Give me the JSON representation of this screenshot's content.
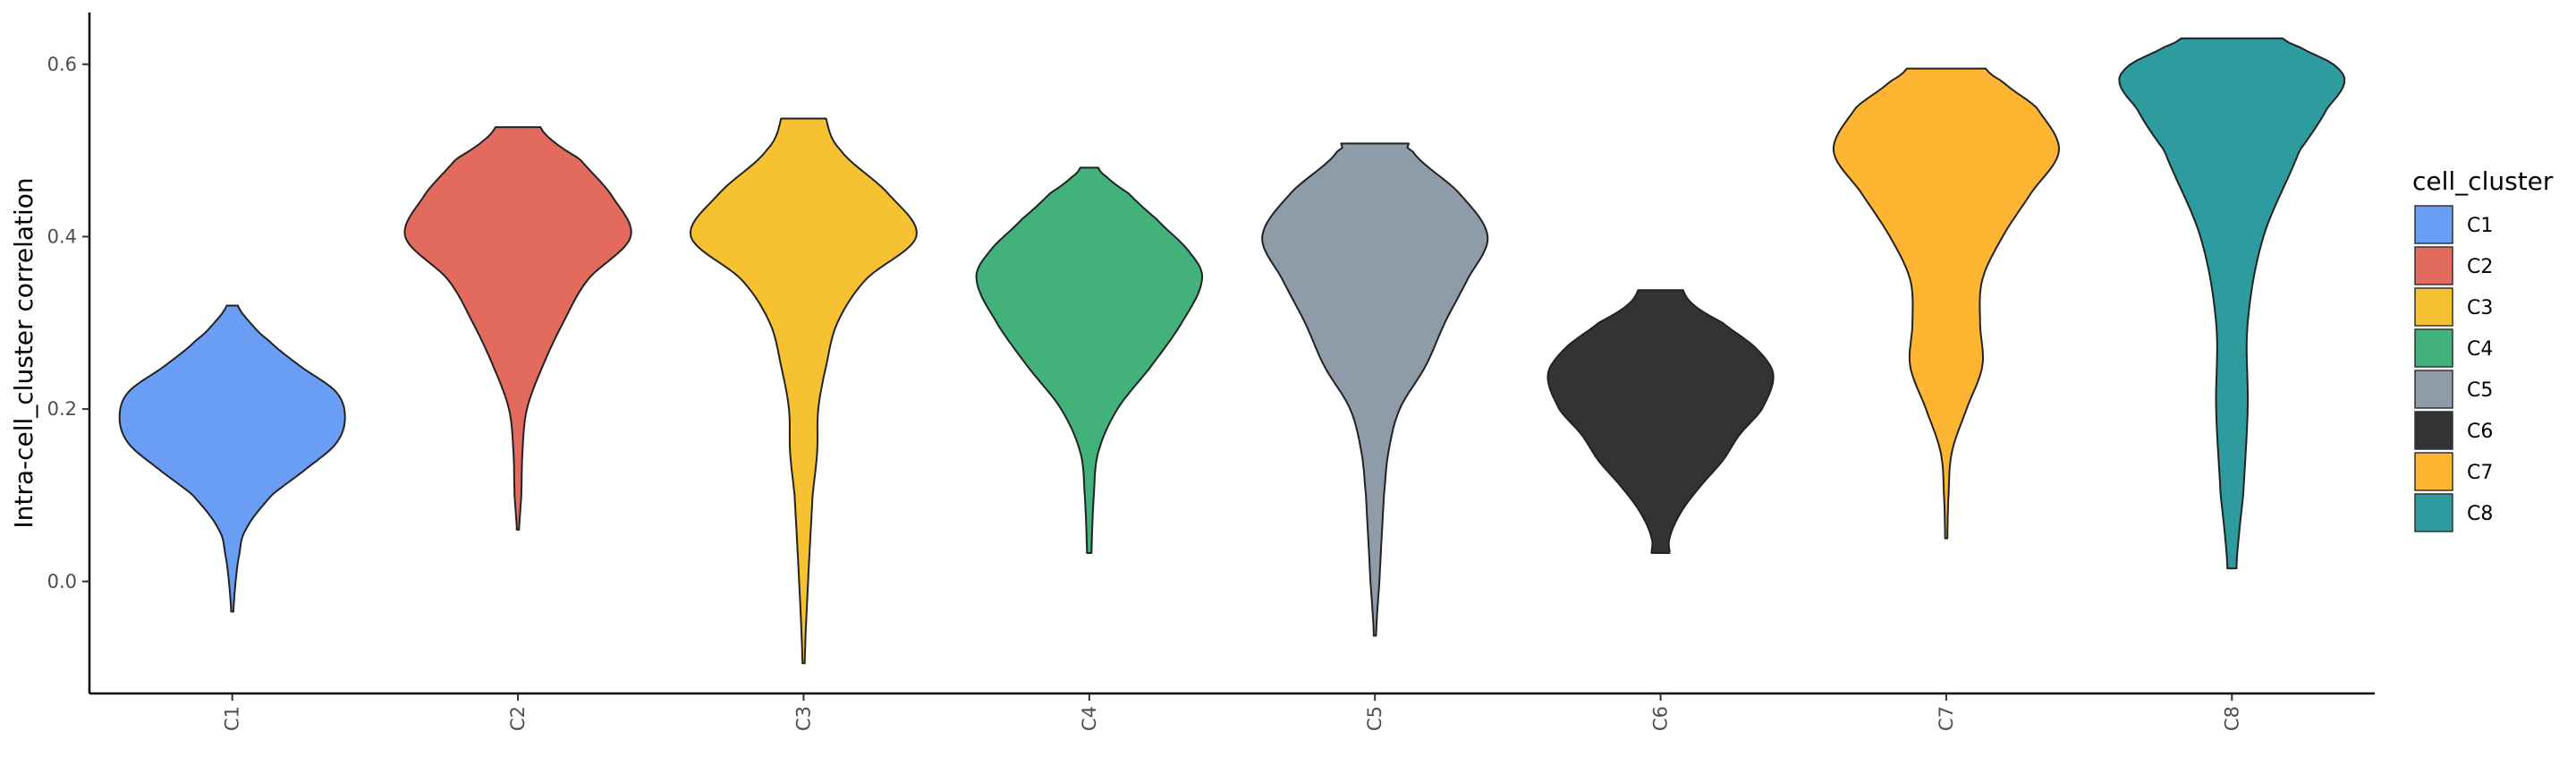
{
  "chart_data": {
    "type": "violin",
    "title": "",
    "xlabel": "",
    "ylabel": "Intra-cell_cluster correlation",
    "ylim": [
      -0.13,
      0.66
    ],
    "yticks": [
      0.0,
      0.2,
      0.4,
      0.6
    ],
    "ytick_labels": [
      "0.0",
      "0.2",
      "0.4",
      "0.6"
    ],
    "grid": false,
    "legend": {
      "title": "cell_cluster",
      "position": "right"
    },
    "series": [
      {
        "name": "C1",
        "color": "#6A9EF5",
        "min": -0.035,
        "max": 0.32,
        "profile": [
          [
            -0.035,
            0.01
          ],
          [
            0.0,
            0.03
          ],
          [
            0.03,
            0.06
          ],
          [
            0.06,
            0.12
          ],
          [
            0.1,
            0.35
          ],
          [
            0.13,
            0.65
          ],
          [
            0.16,
            0.92
          ],
          [
            0.19,
            1.0
          ],
          [
            0.22,
            0.92
          ],
          [
            0.25,
            0.6
          ],
          [
            0.28,
            0.32
          ],
          [
            0.3,
            0.16
          ],
          [
            0.32,
            0.05
          ]
        ]
      },
      {
        "name": "C2",
        "color": "#E26B5E",
        "min": 0.06,
        "max": 0.527,
        "profile": [
          [
            0.06,
            0.01
          ],
          [
            0.1,
            0.03
          ],
          [
            0.15,
            0.04
          ],
          [
            0.2,
            0.08
          ],
          [
            0.25,
            0.22
          ],
          [
            0.3,
            0.4
          ],
          [
            0.35,
            0.62
          ],
          [
            0.4,
            1.0
          ],
          [
            0.45,
            0.82
          ],
          [
            0.49,
            0.55
          ],
          [
            0.51,
            0.32
          ],
          [
            0.527,
            0.2
          ]
        ]
      },
      {
        "name": "C3",
        "color": "#F6C232",
        "min": -0.095,
        "max": 0.537,
        "profile": [
          [
            -0.095,
            0.01
          ],
          [
            0.0,
            0.04
          ],
          [
            0.1,
            0.08
          ],
          [
            0.15,
            0.12
          ],
          [
            0.2,
            0.13
          ],
          [
            0.25,
            0.2
          ],
          [
            0.3,
            0.3
          ],
          [
            0.35,
            0.55
          ],
          [
            0.4,
            1.0
          ],
          [
            0.45,
            0.75
          ],
          [
            0.5,
            0.33
          ],
          [
            0.537,
            0.2
          ]
        ]
      },
      {
        "name": "C4",
        "color": "#42B17A",
        "min": 0.033,
        "max": 0.48,
        "profile": [
          [
            0.033,
            0.02
          ],
          [
            0.1,
            0.04
          ],
          [
            0.15,
            0.08
          ],
          [
            0.2,
            0.25
          ],
          [
            0.25,
            0.55
          ],
          [
            0.3,
            0.82
          ],
          [
            0.35,
            1.0
          ],
          [
            0.38,
            0.9
          ],
          [
            0.42,
            0.6
          ],
          [
            0.45,
            0.35
          ],
          [
            0.47,
            0.15
          ],
          [
            0.48,
            0.08
          ]
        ]
      },
      {
        "name": "C5",
        "color": "#8E9BA8",
        "min": -0.063,
        "max": 0.508,
        "profile": [
          [
            -0.063,
            0.01
          ],
          [
            0.0,
            0.04
          ],
          [
            0.1,
            0.08
          ],
          [
            0.15,
            0.12
          ],
          [
            0.2,
            0.22
          ],
          [
            0.25,
            0.45
          ],
          [
            0.3,
            0.62
          ],
          [
            0.35,
            0.82
          ],
          [
            0.4,
            1.0
          ],
          [
            0.45,
            0.75
          ],
          [
            0.5,
            0.33
          ],
          [
            0.508,
            0.3
          ]
        ]
      },
      {
        "name": "C6",
        "color": "#333333",
        "min": 0.033,
        "max": 0.338,
        "profile": [
          [
            0.033,
            0.08
          ],
          [
            0.05,
            0.08
          ],
          [
            0.08,
            0.18
          ],
          [
            0.11,
            0.35
          ],
          [
            0.14,
            0.55
          ],
          [
            0.17,
            0.7
          ],
          [
            0.2,
            0.9
          ],
          [
            0.24,
            1.0
          ],
          [
            0.27,
            0.85
          ],
          [
            0.3,
            0.55
          ],
          [
            0.32,
            0.3
          ],
          [
            0.338,
            0.2
          ]
        ]
      },
      {
        "name": "C7",
        "color": "#FDB532",
        "min": 0.05,
        "max": 0.595,
        "profile": [
          [
            0.05,
            0.01
          ],
          [
            0.1,
            0.02
          ],
          [
            0.15,
            0.05
          ],
          [
            0.2,
            0.18
          ],
          [
            0.25,
            0.32
          ],
          [
            0.3,
            0.3
          ],
          [
            0.35,
            0.32
          ],
          [
            0.4,
            0.5
          ],
          [
            0.45,
            0.75
          ],
          [
            0.5,
            1.0
          ],
          [
            0.55,
            0.8
          ],
          [
            0.58,
            0.5
          ],
          [
            0.595,
            0.35
          ]
        ]
      },
      {
        "name": "C8",
        "color": "#2E9B9F",
        "min": 0.015,
        "max": 0.63,
        "profile": [
          [
            0.015,
            0.04
          ],
          [
            0.05,
            0.06
          ],
          [
            0.1,
            0.1
          ],
          [
            0.2,
            0.14
          ],
          [
            0.3,
            0.14
          ],
          [
            0.4,
            0.28
          ],
          [
            0.5,
            0.6
          ],
          [
            0.55,
            0.85
          ],
          [
            0.58,
            1.0
          ],
          [
            0.6,
            0.9
          ],
          [
            0.62,
            0.6
          ],
          [
            0.63,
            0.45
          ]
        ]
      }
    ]
  }
}
